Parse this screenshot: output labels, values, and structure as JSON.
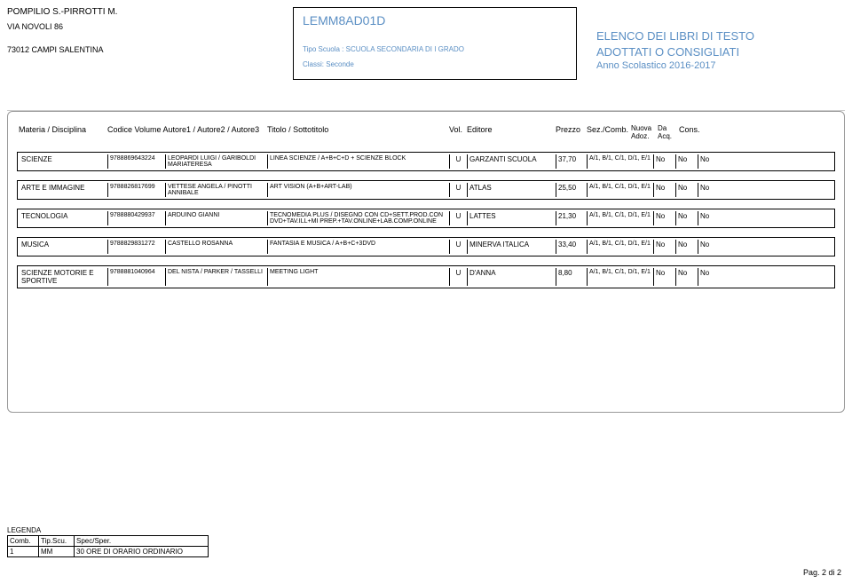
{
  "school": {
    "name": "POMPILIO S.-PIRROTTI M.",
    "address": "VIA NOVOLI 86",
    "city": "73012  CAMPI SALENTINA"
  },
  "center": {
    "code": "LEMM8AD01D",
    "tipo_label": "Tipo Scuola :",
    "tipo_value": "SCUOLA SECONDARIA DI I GRADO",
    "classi_label": "Classi:",
    "classi_value": "Seconde"
  },
  "right": {
    "title_line1": "ELENCO DEI LIBRI DI TESTO",
    "title_line2": "ADOTTATI O CONSIGLIATI",
    "anno": "Anno Scolastico 2016-2017"
  },
  "headers": {
    "materia": "Materia / Disciplina",
    "codice": "Codice Volume Autore1 / Autore2 / Autore3",
    "titolo": "Titolo / Sottotitolo",
    "vol": "Vol.",
    "editore": "Editore",
    "prezzo": "Prezzo",
    "sez": "Sez./Comb.",
    "nuova": "Nuova Adoz.",
    "da": "Da Acq.",
    "cons": "Cons."
  },
  "books": [
    {
      "materia": "SCIENZE",
      "codice": "9788869643224",
      "autore": "LEOPARDI LUIGI / GARIBOLDI MARIATERESA",
      "titolo": "LINEA SCIENZE / A+B+C+D + SCIENZE BLOCK",
      "vol": "U",
      "editore": "GARZANTI SCUOLA",
      "prezzo": "37,70",
      "sez": "A/1, B/1, C/1, D/1, E/1",
      "nuova": "No",
      "da": "No",
      "cons": "No"
    },
    {
      "materia": "ARTE E IMMAGINE",
      "codice": "9788826817699",
      "autore": "VETTESE ANGELA / PINOTTI ANNIBALE",
      "titolo": "ART VISION (A+B+ART-LAB)",
      "vol": "U",
      "editore": "ATLAS",
      "prezzo": "25,50",
      "sez": "A/1, B/1, C/1, D/1, E/1",
      "nuova": "No",
      "da": "No",
      "cons": "No"
    },
    {
      "materia": "TECNOLOGIA",
      "codice": "9788880429937",
      "autore": "ARDUINO GIANNI",
      "titolo": "TECNOMEDIA PLUS / DISEGNO CON CD+SETT.PROD.CON DVD+TAV.ILL+MI PREP.+TAV.ONLINE+LAB.COMP.ONLINE",
      "vol": "U",
      "editore": "LATTES",
      "prezzo": "21,30",
      "sez": "A/1, B/1, C/1, D/1, E/1",
      "nuova": "No",
      "da": "No",
      "cons": "No"
    },
    {
      "materia": "MUSICA",
      "codice": "9788829831272",
      "autore": "CASTELLO ROSANNA",
      "titolo": "FANTASIA E MUSICA / A+B+C+3DVD",
      "vol": "U",
      "editore": "MINERVA ITALICA",
      "prezzo": "33,40",
      "sez": "A/1, B/1, C/1, D/1, E/1",
      "nuova": "No",
      "da": "No",
      "cons": "No"
    },
    {
      "materia": "SCIENZE MOTORIE E SPORTIVE",
      "codice": "9788881040964",
      "autore": "DEL NISTA / PARKER / TASSELLI",
      "titolo": "MEETING LIGHT",
      "vol": "U",
      "editore": "D'ANNA",
      "prezzo": "8,80",
      "sez": "A/1, B/1, C/1, D/1, E/1",
      "nuova": "No",
      "da": "No",
      "cons": "No"
    }
  ],
  "legenda": {
    "title": "LEGENDA",
    "h_comb": "Comb.",
    "h_tip": "Tip.Scu.",
    "h_spec": "Spec/Sper.",
    "r_comb": "1",
    "r_tip": "MM",
    "r_spec": "30 ORE DI ORARIO ORDINARIO"
  },
  "page_num": "Pag. 2 di 2"
}
